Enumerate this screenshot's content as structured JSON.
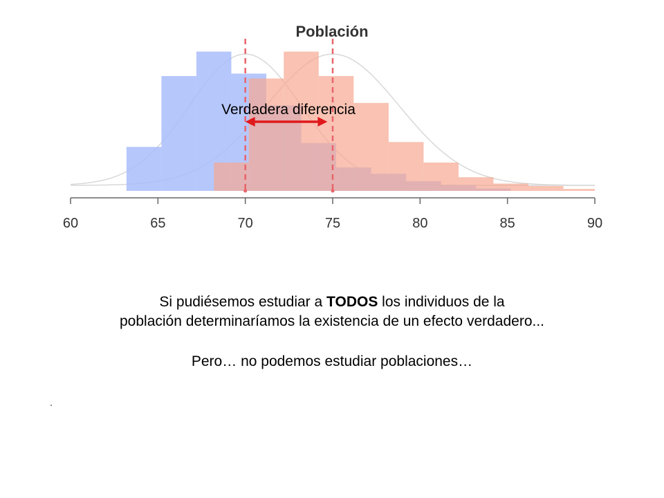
{
  "chart_data": {
    "type": "histogram",
    "title": "Población",
    "xlim": [
      60,
      90
    ],
    "x_ticks": [
      60,
      65,
      70,
      75,
      80,
      85,
      90
    ],
    "bin_width": 2,
    "series": [
      {
        "color": "#a9bdfb",
        "opacity": 0.85,
        "bins": [
          {
            "x0": 63.2,
            "x1": 65.2,
            "y": 0.09
          },
          {
            "x0": 65.2,
            "x1": 67.2,
            "y": 0.235
          },
          {
            "x0": 67.2,
            "x1": 69.2,
            "y": 0.285
          },
          {
            "x0": 69.2,
            "x1": 71.2,
            "y": 0.24
          },
          {
            "x0": 71.2,
            "x1": 73.2,
            "y": 0.175
          },
          {
            "x0": 73.2,
            "x1": 75.2,
            "y": 0.098
          },
          {
            "x0": 75.2,
            "x1": 77.2,
            "y": 0.048
          },
          {
            "x0": 77.2,
            "x1": 79.2,
            "y": 0.035
          },
          {
            "x0": 79.2,
            "x1": 81.2,
            "y": 0.02
          },
          {
            "x0": 81.2,
            "x1": 83.2,
            "y": 0.012
          },
          {
            "x0": 83.2,
            "x1": 85.2,
            "y": 0.005
          }
        ],
        "mean": 70
      },
      {
        "color": "#f7a891",
        "opacity": 0.7,
        "bins": [
          {
            "x0": 68.2,
            "x1": 70.2,
            "y": 0.058
          },
          {
            "x0": 70.2,
            "x1": 72.2,
            "y": 0.23
          },
          {
            "x0": 72.2,
            "x1": 74.2,
            "y": 0.285
          },
          {
            "x0": 74.2,
            "x1": 76.2,
            "y": 0.235
          },
          {
            "x0": 76.2,
            "x1": 78.2,
            "y": 0.18
          },
          {
            "x0": 78.2,
            "x1": 80.2,
            "y": 0.1
          },
          {
            "x0": 80.2,
            "x1": 82.2,
            "y": 0.058
          },
          {
            "x0": 82.2,
            "x1": 84.2,
            "y": 0.028
          },
          {
            "x0": 84.2,
            "x1": 86.2,
            "y": 0.015
          },
          {
            "x0": 86.2,
            "x1": 88.2,
            "y": 0.01
          },
          {
            "x0": 88.2,
            "x1": 90.0,
            "y": 0.004
          }
        ],
        "mean": 75
      }
    ],
    "density_curves": [
      {
        "mean": 70,
        "sd": 3.2,
        "color": "#d8d8d8"
      },
      {
        "mean": 75,
        "sd": 3.8,
        "color": "#d8d8d8"
      }
    ],
    "mean_lines": [
      70,
      75
    ],
    "mean_line_color": "#e8636a",
    "annotation": {
      "text": "Verdadera diferencia",
      "from": 70,
      "to": 74.7,
      "arrow_color": "#e0191c"
    },
    "ylim": [
      0,
      0.3
    ]
  },
  "text": {
    "p1_before": "Si pudiésemos estudiar a ",
    "p1_bold": "TODOS",
    "p1_after": " los individuos de la",
    "p1_line2": "población determinaríamos la existencia de un efecto verdadero...",
    "p2": "Pero… no podemos estudiar poblaciones…"
  }
}
